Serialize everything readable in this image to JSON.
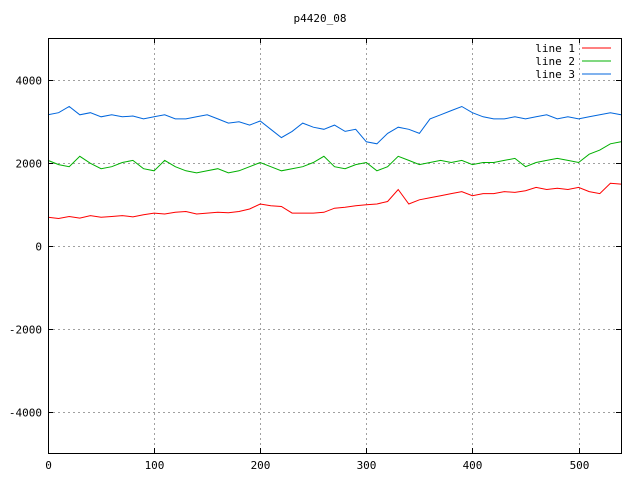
{
  "chart_data": {
    "type": "line",
    "title": "p4420_08",
    "xlabel": "",
    "ylabel": "",
    "xlim": [
      0,
      540
    ],
    "ylim": [
      -5000,
      5000
    ],
    "x_ticks": [
      0,
      100,
      200,
      300,
      400,
      500
    ],
    "y_ticks": [
      -4000,
      -2000,
      0,
      2000,
      4000
    ],
    "grid": true,
    "legend_position": "top-right",
    "x": [
      0,
      10,
      20,
      30,
      40,
      50,
      60,
      70,
      80,
      90,
      100,
      110,
      120,
      130,
      140,
      150,
      160,
      170,
      180,
      190,
      200,
      210,
      220,
      230,
      240,
      250,
      260,
      270,
      280,
      290,
      300,
      310,
      320,
      330,
      340,
      350,
      360,
      370,
      380,
      390,
      400,
      410,
      420,
      430,
      440,
      450,
      460,
      470,
      480,
      490,
      500,
      510,
      520,
      530,
      540
    ],
    "series": [
      {
        "name": "line 1",
        "color": "#ff0000",
        "values": [
          680,
          650,
          700,
          660,
          720,
          680,
          700,
          720,
          690,
          740,
          780,
          760,
          800,
          820,
          760,
          780,
          800,
          790,
          820,
          880,
          1000,
          960,
          940,
          780,
          780,
          780,
          800,
          900,
          920,
          960,
          980,
          1000,
          1060,
          1350,
          1000,
          1100,
          1150,
          1200,
          1250,
          1300,
          1200,
          1250,
          1250,
          1300,
          1280,
          1320,
          1400,
          1350,
          1380,
          1350,
          1400,
          1300,
          1250,
          1500,
          1480
        ]
      },
      {
        "name": "line 2",
        "color": "#00b000",
        "values": [
          2050,
          1950,
          1900,
          2150,
          1980,
          1850,
          1900,
          2000,
          2050,
          1850,
          1800,
          2050,
          1900,
          1800,
          1750,
          1800,
          1850,
          1750,
          1800,
          1900,
          2000,
          1900,
          1800,
          1850,
          1900,
          2000,
          2150,
          1900,
          1850,
          1950,
          2000,
          1800,
          1900,
          2150,
          2050,
          1950,
          2000,
          2050,
          2000,
          2050,
          1950,
          2000,
          2000,
          2050,
          2100,
          1900,
          2000,
          2050,
          2100,
          2050,
          2000,
          2200,
          2300,
          2450,
          2500
        ]
      },
      {
        "name": "line 3",
        "color": "#0066dd",
        "values": [
          3150,
          3200,
          3350,
          3150,
          3200,
          3100,
          3150,
          3100,
          3120,
          3050,
          3100,
          3150,
          3050,
          3050,
          3100,
          3150,
          3050,
          2950,
          2980,
          2900,
          3000,
          2800,
          2600,
          2750,
          2950,
          2850,
          2800,
          2900,
          2750,
          2800,
          2500,
          2450,
          2700,
          2850,
          2800,
          2700,
          3050,
          3150,
          3250,
          3350,
          3200,
          3100,
          3050,
          3050,
          3100,
          3050,
          3100,
          3150,
          3050,
          3100,
          3050,
          3100,
          3150,
          3200,
          3150
        ]
      }
    ]
  }
}
